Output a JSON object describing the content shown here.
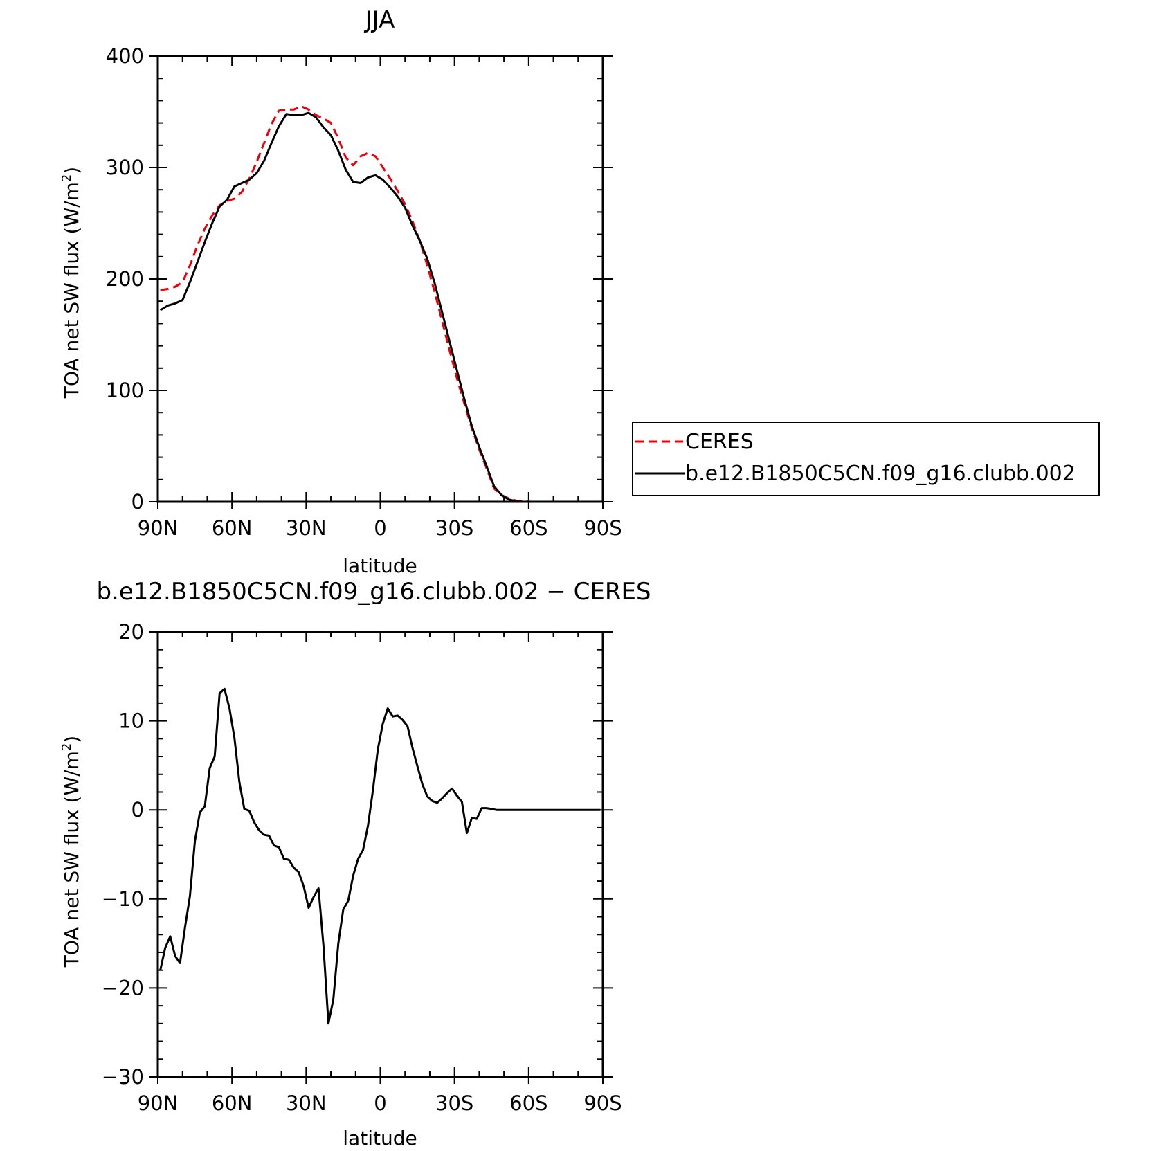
{
  "chart_data": [
    {
      "type": "line",
      "title": "JJA",
      "xlabel": "latitude",
      "ylabel": "TOA net SW flux (W/m",
      "ylabel_sup": "2",
      "ylabel_end": ")",
      "xlim": [
        90,
        -90
      ],
      "ylim": [
        0,
        400
      ],
      "x_ticks": [
        {
          "value": 90,
          "label": "90N"
        },
        {
          "value": 60,
          "label": "60N"
        },
        {
          "value": 30,
          "label": "30N"
        },
        {
          "value": 0,
          "label": "0"
        },
        {
          "value": -30,
          "label": "30S"
        },
        {
          "value": -60,
          "label": "60S"
        },
        {
          "value": -90,
          "label": "90S"
        }
      ],
      "y_ticks": [
        {
          "value": 0,
          "label": "0"
        },
        {
          "value": 100,
          "label": "100"
        },
        {
          "value": 200,
          "label": "200"
        },
        {
          "value": 300,
          "label": "300"
        },
        {
          "value": 400,
          "label": "400"
        }
      ],
      "legend": "right",
      "series": [
        {
          "name": "CERES",
          "color": "#e8000b",
          "dash": "dashed",
          "x": [
            89,
            86,
            83,
            80,
            77,
            74,
            71,
            68,
            65,
            62,
            59,
            56,
            53,
            50,
            47,
            44,
            41,
            38,
            35,
            32,
            29,
            26,
            23,
            20,
            17,
            14,
            11,
            8,
            5,
            2,
            -1,
            -4,
            -7,
            -10,
            -13,
            -16,
            -19,
            -22,
            -25,
            -28,
            -31,
            -34,
            -37,
            -40,
            -43,
            -46,
            -49,
            -52,
            -55,
            -58,
            -61,
            -64,
            -67,
            -70,
            -73,
            -76,
            -79,
            -82,
            -85,
            -89
          ],
          "y": [
            190,
            191,
            193,
            197,
            212,
            230,
            245,
            257,
            266,
            270,
            272,
            278,
            290,
            305,
            322,
            339,
            351,
            352,
            352,
            355,
            352,
            347,
            344,
            340,
            326,
            309,
            302,
            310,
            313,
            310,
            300,
            290,
            279,
            267,
            252,
            234,
            212,
            188,
            162,
            136,
            111,
            88,
            66,
            47,
            30,
            12,
            6,
            3,
            1,
            0.5,
            0,
            0,
            0,
            0,
            0,
            0,
            0,
            0,
            0,
            0
          ]
        },
        {
          "name": "b.e12.B1850C5CN.f09_g16.clubb.002",
          "color": "#000000",
          "dash": "solid",
          "x": [
            89,
            86,
            83,
            80,
            77,
            74,
            71,
            68,
            65,
            62,
            59,
            56,
            53,
            50,
            47,
            44,
            41,
            38,
            35,
            32,
            29,
            26,
            23,
            20,
            17,
            14,
            11,
            8,
            5,
            2,
            -1,
            -4,
            -7,
            -10,
            -13,
            -16,
            -19,
            -22,
            -25,
            -28,
            -31,
            -34,
            -37,
            -40,
            -43,
            -46,
            -49,
            -52,
            -55,
            -58,
            -61,
            -64,
            -67,
            -70,
            -73,
            -76,
            -79,
            -82,
            -85,
            -89
          ],
          "y": [
            172,
            176,
            178,
            181,
            197,
            215,
            233,
            250,
            265,
            271,
            283,
            286,
            289,
            295,
            306,
            322,
            337,
            348,
            347,
            347,
            349,
            345,
            336,
            329,
            315,
            298,
            287,
            286,
            291,
            293,
            289,
            282,
            274,
            264,
            248,
            234,
            218,
            196,
            170,
            144,
            118,
            92,
            68,
            49,
            32,
            14,
            6,
            2,
            0.5,
            0,
            0,
            0,
            0,
            0,
            0,
            0,
            0,
            0,
            0,
            0
          ]
        }
      ]
    },
    {
      "type": "line",
      "title": "b.e12.B1850C5CN.f09_g16.clubb.002 − CERES",
      "xlabel": "latitude",
      "ylabel": "TOA net SW flux (W/m",
      "ylabel_sup": "2",
      "ylabel_end": ")",
      "xlim": [
        90,
        -90
      ],
      "ylim": [
        -30,
        20
      ],
      "x_ticks": [
        {
          "value": 90,
          "label": "90N"
        },
        {
          "value": 60,
          "label": "60N"
        },
        {
          "value": 30,
          "label": "30N"
        },
        {
          "value": 0,
          "label": "0"
        },
        {
          "value": -30,
          "label": "30S"
        },
        {
          "value": -60,
          "label": "60S"
        },
        {
          "value": -90,
          "label": "90S"
        }
      ],
      "y_ticks": [
        {
          "value": -30,
          "label": "−30"
        },
        {
          "value": -20,
          "label": "−20"
        },
        {
          "value": -10,
          "label": "−10"
        },
        {
          "value": 0,
          "label": "0"
        },
        {
          "value": 10,
          "label": "10"
        },
        {
          "value": 20,
          "label": "20"
        }
      ],
      "series": [
        {
          "color": "#000000",
          "dash": "solid",
          "x": [
            89,
            87,
            85,
            83,
            81,
            79,
            77,
            75,
            73,
            71,
            69,
            67,
            65,
            63,
            61,
            59,
            57,
            55,
            53,
            51,
            49,
            47,
            45,
            43,
            41,
            39,
            37,
            35,
            33,
            31,
            29,
            27,
            25,
            23,
            21,
            19,
            17,
            15,
            13,
            11,
            9,
            7,
            5,
            3,
            1,
            -1,
            -3,
            -5,
            -7,
            -9,
            -11,
            -13,
            -15,
            -17,
            -19,
            -21,
            -23,
            -25,
            -27,
            -29,
            -31,
            -33,
            -35,
            -37,
            -39,
            -41,
            -43,
            -45,
            -47,
            -49,
            -51,
            -53,
            -55,
            -57,
            -59,
            -61,
            -63,
            -65,
            -67,
            -69,
            -71,
            -73,
            -75,
            -77,
            -79,
            -81,
            -83,
            -85,
            -87,
            -89
          ],
          "y": [
            -18,
            -15.5,
            -14.2,
            -16.4,
            -17.2,
            -13.2,
            -9.7,
            -3.5,
            -0.3,
            0.4,
            4.7,
            6,
            13.1,
            13.6,
            11.4,
            8.1,
            3.1,
            0.1,
            -0.1,
            -1.4,
            -2.3,
            -2.8,
            -2.9,
            -4,
            -4.2,
            -5.5,
            -5.6,
            -6.5,
            -7,
            -8.6,
            -11,
            -9.8,
            -8.8,
            -15.2,
            -24,
            -21.3,
            -15,
            -11.2,
            -10.2,
            -7.4,
            -5.5,
            -4.5,
            -1.8,
            2.2,
            6.8,
            9.7,
            11.4,
            10.5,
            10.6,
            10.1,
            9.4,
            7,
            4.9,
            2.9,
            1.5,
            1,
            0.8,
            1.3,
            1.9,
            2.4,
            1.6,
            0.9,
            -2.6,
            -0.9,
            -1,
            0.2,
            0.2,
            0.1,
            0,
            0,
            0,
            0,
            0,
            0,
            0,
            0,
            0,
            0,
            0,
            0,
            0,
            0,
            0,
            0,
            0,
            0,
            0,
            0,
            0,
            0
          ]
        }
      ]
    }
  ]
}
